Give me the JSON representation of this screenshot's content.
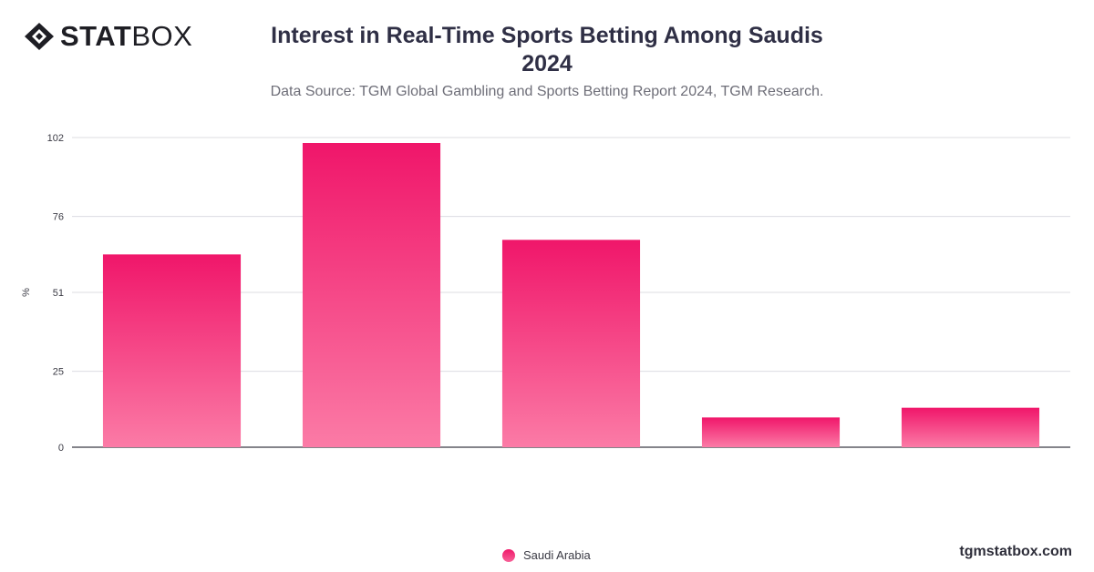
{
  "brand": {
    "logo_bold": "STAT",
    "logo_light": "BOX",
    "icon": "diamond-logo-icon",
    "url": "tgmstatbox.com"
  },
  "colors": {
    "bar_top": "#f0166a",
    "bar_bottom": "#fb7ba6",
    "grid": "#dcdce2",
    "axis": "#3a3a44"
  },
  "chart_data": {
    "type": "bar",
    "title_line1": "Interest in Real-Time Sports Betting Among Saudis",
    "title_line2": "2024",
    "subtitle": "Data Source: TGM Global Gambling and Sports Betting Report 2024, TGM Research.",
    "xlabel": "",
    "ylabel": "%",
    "ylim": [
      0,
      102
    ],
    "yticks": [
      "0",
      "25",
      "51",
      "76",
      "102"
    ],
    "categories": [
      "",
      "",
      "",
      "",
      ""
    ],
    "series": [
      {
        "name": "Saudi Arabia",
        "values": [
          63.5,
          100.2,
          68.3,
          9.8,
          13.0
        ]
      }
    ],
    "grid": true,
    "legend_position": "bottom-center"
  }
}
